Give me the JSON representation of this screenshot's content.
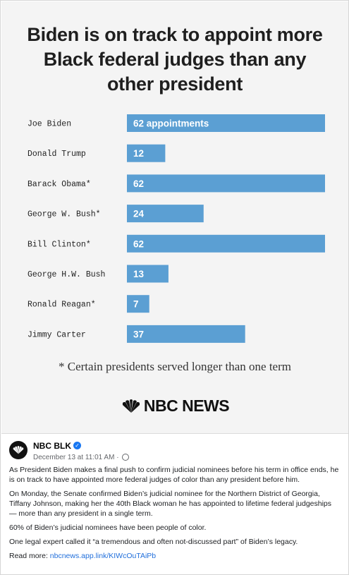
{
  "chart_data": {
    "type": "bar",
    "orientation": "horizontal",
    "title_lines": [
      "Biden is on track to appoint more",
      "Black federal judges than any",
      "other president"
    ],
    "categories": [
      "Joe Biden",
      "Donald Trump",
      "Barack Obama*",
      "George W. Bush*",
      "Bill Clinton*",
      "George H.W. Bush",
      "Ronald Reagan*",
      "Jimmy Carter"
    ],
    "values": [
      62,
      12,
      62,
      24,
      62,
      13,
      7,
      37
    ],
    "data_labels": [
      "62 appointments",
      "12",
      "62",
      "24",
      "62",
      "13",
      "7",
      "37"
    ],
    "xlim": [
      0,
      62
    ],
    "grid": false,
    "bar_color": "#5b9fd3",
    "label_color": "#ffffff"
  },
  "footnote": "* Certain presidents served longer than one term",
  "logo": {
    "text": "NBC NEWS",
    "icon": "peacock-icon"
  },
  "post": {
    "page_name": "NBC BLK",
    "verified_icon": "verified-badge-icon",
    "date": "December 13 at 11:01 AM ·",
    "audience_icon": "globe-icon",
    "paragraphs": [
      "As President Biden makes a final push to confirm judicial nominees before his term in office ends, he is on track to have appointed more federal judges of color than any president before him.",
      "On Monday, the Senate confirmed Biden’s judicial nominee for the Northern District of Georgia, Tiffany Johnson, making her the 40th Black woman he has appointed to lifetime federal judgeships — more than any president in a single term.",
      "60% of Biden’s judicial nominees have been people of color.",
      "One legal expert called it “a tremendous and often not-discussed part” of Biden’s legacy."
    ],
    "read_more_label": "Read more:",
    "read_more_link": "nbcnews.app.link/KIWcOuTAiPb"
  }
}
